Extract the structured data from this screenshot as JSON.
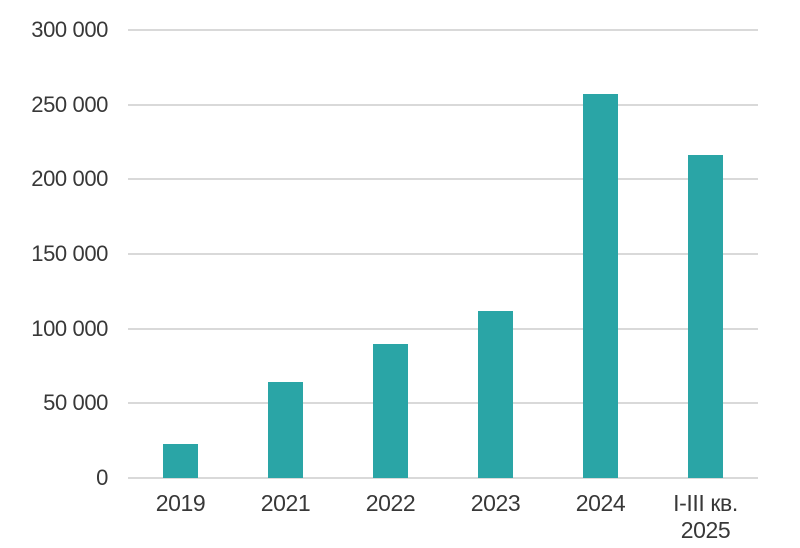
{
  "chart_data": {
    "type": "bar",
    "categories": [
      "2019",
      "2021",
      "2022",
      "2023",
      "2024",
      "I-III кв.\n2025"
    ],
    "values": [
      23000,
      64000,
      90000,
      112000,
      257000,
      216000
    ],
    "title": "",
    "xlabel": "",
    "ylabel": "",
    "ylim": [
      0,
      300000
    ],
    "ytick_step": 50000,
    "ytick_labels_bottom_up": [
      "0",
      "50 000",
      "100 000",
      "150 000",
      "200 000",
      "250 000",
      "300 000"
    ],
    "grid": true,
    "legend": null,
    "colors": {
      "bar": "#2aa5a6",
      "gridline": "#d9d9d9",
      "text": "#383838",
      "background": "#ffffff"
    }
  }
}
